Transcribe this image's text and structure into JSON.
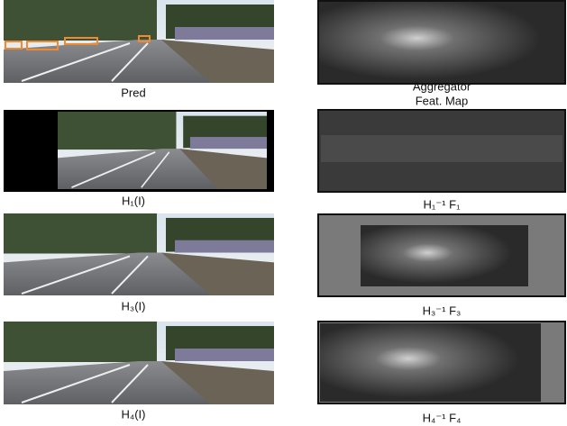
{
  "left_panels": [
    {
      "caption": "Pred"
    },
    {
      "caption": "H₁(I)"
    },
    {
      "caption": "H₃(I)"
    },
    {
      "caption": "H₄(I)"
    }
  ],
  "right_panels": [
    {
      "caption_lines": [
        "Aggregator",
        "Feat. Map"
      ]
    },
    {
      "caption_lines": [
        "H₁⁻¹ F₁"
      ]
    },
    {
      "caption_lines": [
        "H₃⁻¹ F₃"
      ]
    },
    {
      "caption_lines": [
        "H₄⁻¹ F₄"
      ]
    }
  ]
}
